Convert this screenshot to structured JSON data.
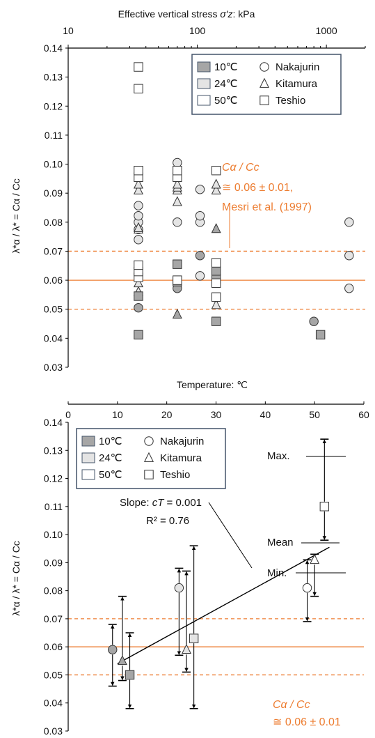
{
  "colors": {
    "axis": "#000000",
    "reference_line": "#ED7D31",
    "fill_10C": "#a6a6a6",
    "fill_24C": "#e4e4e4",
    "fill_50C": "#ffffff",
    "legend_border": "#44546a"
  },
  "icons": {
    "circle": "circle-marker-icon",
    "triangle": "triangle-marker-icon",
    "square": "square-marker-icon"
  },
  "legend": {
    "temps": [
      "10℃",
      "24℃",
      "50℃"
    ],
    "clays": [
      "Nakajurin",
      "Kitamura",
      "Teshio"
    ]
  },
  "chart_data": [
    {
      "type": "scatter",
      "x_scale": "log",
      "x_axis_position": "top",
      "xlabel_prefix": "Effective vertical stress ",
      "xlabel_symbol": "σ′z",
      "xlabel_suffix": ": kPa",
      "ylabel": "λ*α / λ* = Cα / Cc",
      "xlim": [
        10,
        2000
      ],
      "ylim": [
        0.03,
        0.14
      ],
      "xticks": [
        10,
        100,
        1000
      ],
      "xtick_labels": [
        "10",
        "100",
        "1000"
      ],
      "yticks": [
        0.03,
        0.04,
        0.05,
        0.06,
        0.07,
        0.08,
        0.09,
        0.1,
        0.11,
        0.12,
        0.13,
        0.14
      ],
      "ytick_labels": [
        "0.03",
        "0.04",
        "0.05",
        "0.06",
        "0.07",
        "0.08",
        "0.09",
        "0.10",
        "0.11",
        "0.12",
        "0.13",
        "0.14"
      ],
      "legend_position": "top-right",
      "reference_lines": [
        {
          "y": 0.06,
          "style": "solid"
        },
        {
          "y": 0.07,
          "style": "dashed"
        },
        {
          "y": 0.05,
          "style": "dashed"
        }
      ],
      "annotation": {
        "lines": [
          "Cα / Cc",
          "≅ 0.06 ± 0.01,",
          "Mesri et al. (1997)"
        ]
      },
      "series": [
        {
          "clay": "Nakajurin",
          "marker": "circle",
          "temp": "10℃",
          "points": [
            [
              35,
              0.0505
            ],
            [
              70,
              0.0572
            ],
            [
              105,
              0.0685
            ],
            [
              800,
              0.0458
            ]
          ]
        },
        {
          "clay": "Nakajurin",
          "marker": "circle",
          "temp": "24℃",
          "points": [
            [
              35,
              0.074
            ],
            [
              35,
              0.0775
            ],
            [
              35,
              0.08
            ],
            [
              35,
              0.0822
            ],
            [
              35,
              0.0857
            ],
            [
              70,
              0.08
            ],
            [
              70,
              0.1005
            ],
            [
              105,
              0.08
            ],
            [
              105,
              0.0822
            ],
            [
              105,
              0.0615
            ],
            [
              105,
              0.0913
            ],
            [
              1500,
              0.08
            ],
            [
              1500,
              0.0685
            ],
            [
              1500,
              0.0572
            ]
          ]
        },
        {
          "clay": "Kitamura",
          "marker": "triangle",
          "temp": "10℃",
          "points": [
            [
              70,
              0.0482
            ],
            [
              140,
              0.0777
            ]
          ]
        },
        {
          "clay": "Kitamura",
          "marker": "triangle",
          "temp": "24℃",
          "points": [
            [
              35,
              0.056
            ],
            [
              35,
              0.059
            ],
            [
              35,
              0.0775
            ],
            [
              35,
              0.078
            ],
            [
              35,
              0.091
            ],
            [
              35,
              0.093
            ],
            [
              70,
              0.087
            ],
            [
              70,
              0.091
            ],
            [
              70,
              0.092
            ],
            [
              70,
              0.093
            ],
            [
              140,
              0.0515
            ],
            [
              140,
              0.091
            ],
            [
              140,
              0.093
            ]
          ]
        },
        {
          "clay": "Teshio",
          "marker": "square",
          "temp": "10℃",
          "points": [
            [
              35,
              0.0412
            ],
            [
              35,
              0.0545
            ],
            [
              70,
              0.0595
            ],
            [
              70,
              0.0655
            ],
            [
              140,
              0.0458
            ],
            [
              140,
              0.0605
            ],
            [
              140,
              0.0632
            ],
            [
              900,
              0.0412
            ]
          ]
        },
        {
          "clay": "Teshio",
          "marker": "square",
          "temp": "50℃",
          "points": [
            [
              35,
              0.061
            ],
            [
              35,
              0.063
            ],
            [
              35,
              0.0652
            ],
            [
              35,
              0.0955
            ],
            [
              35,
              0.0978
            ],
            [
              35,
              0.126
            ],
            [
              35,
              0.1335
            ],
            [
              70,
              0.06
            ],
            [
              70,
              0.0955
            ],
            [
              70,
              0.0978
            ],
            [
              140,
              0.0542
            ],
            [
              140,
              0.059
            ],
            [
              140,
              0.066
            ],
            [
              140,
              0.0978
            ]
          ]
        }
      ]
    },
    {
      "type": "scatter",
      "xlabel": "Temperature: ℃",
      "ylabel": "λ*α / λ* = Cα / Cc",
      "xlim": [
        0,
        60
      ],
      "ylim": [
        0.03,
        0.14
      ],
      "xticks": [
        0,
        10,
        20,
        30,
        40,
        50,
        60
      ],
      "xtick_labels": [
        "0",
        "10",
        "20",
        "30",
        "40",
        "50",
        "60"
      ],
      "yticks": [
        0.03,
        0.04,
        0.05,
        0.06,
        0.07,
        0.08,
        0.09,
        0.1,
        0.11,
        0.12,
        0.13,
        0.14
      ],
      "ytick_labels": [
        "0.03",
        "0.04",
        "0.05",
        "0.06",
        "0.07",
        "0.08",
        "0.09",
        "0.10",
        "0.11",
        "0.12",
        "0.13",
        "0.14"
      ],
      "legend_position": "top-left",
      "reference_lines": [
        {
          "y": 0.06,
          "style": "solid"
        },
        {
          "y": 0.07,
          "style": "dashed"
        },
        {
          "y": 0.05,
          "style": "dashed"
        }
      ],
      "trendline": {
        "x": [
          10,
          53
        ],
        "y": [
          0.054,
          0.0955
        ]
      },
      "slope_label": {
        "prefix": "Slope: ",
        "symbol": "cT",
        "value": " = 0.001",
        "r2": "R² = 0.76"
      },
      "minmax_labels": {
        "max": "Max.",
        "mean": "Mean",
        "min": "Min."
      },
      "annotation": {
        "lines": [
          "Cα / Cc",
          "≅ 0.06 ± 0.01"
        ]
      },
      "points": [
        {
          "clay": "Nakajurin",
          "marker": "circle",
          "temp": "10℃",
          "x": 9,
          "mean": 0.059,
          "min": 0.046,
          "max": 0.068
        },
        {
          "clay": "Kitamura",
          "marker": "triangle",
          "temp": "10℃",
          "x": 11,
          "mean": 0.055,
          "min": 0.048,
          "max": 0.078
        },
        {
          "clay": "Teshio",
          "marker": "square",
          "temp": "10℃",
          "x": 12.5,
          "mean": 0.05,
          "min": 0.038,
          "max": 0.065
        },
        {
          "clay": "Nakajurin",
          "marker": "circle",
          "temp": "24℃",
          "x": 22.5,
          "mean": 0.081,
          "min": 0.057,
          "max": 0.088
        },
        {
          "clay": "Kitamura",
          "marker": "triangle",
          "temp": "24℃",
          "x": 24,
          "mean": 0.059,
          "min": 0.051,
          "max": 0.087
        },
        {
          "clay": "Teshio",
          "marker": "square",
          "temp": "24℃",
          "x": 25.5,
          "mean": 0.063,
          "min": 0.038,
          "max": 0.096
        },
        {
          "clay": "Nakajurin",
          "marker": "circle",
          "temp": "50℃",
          "x": 48.5,
          "mean": 0.081,
          "min": 0.069,
          "max": 0.091
        },
        {
          "clay": "Kitamura",
          "marker": "triangle",
          "temp": "50℃",
          "x": 50,
          "mean": 0.091,
          "min": 0.078,
          "max": 0.093
        },
        {
          "clay": "Teshio",
          "marker": "square",
          "temp": "50℃",
          "x": 52,
          "mean": 0.11,
          "min": 0.098,
          "max": 0.134
        }
      ]
    }
  ]
}
